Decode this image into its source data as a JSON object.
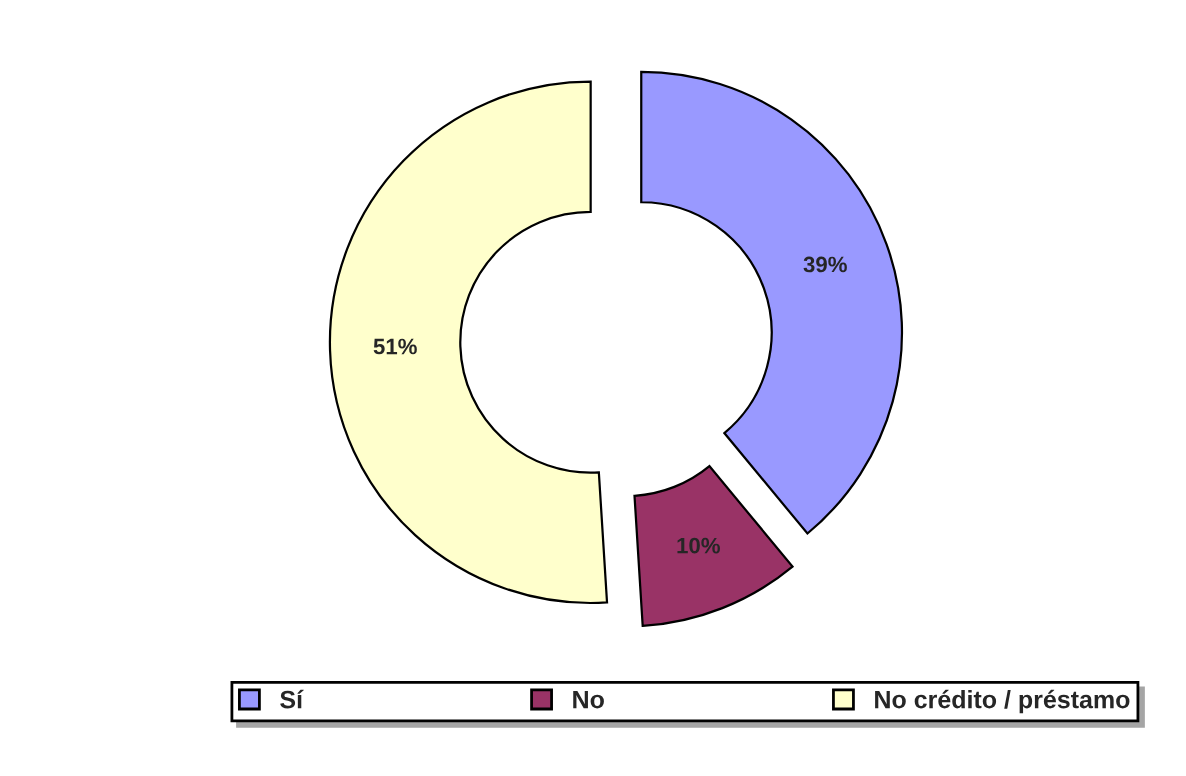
{
  "chart_data": {
    "type": "donut",
    "categories": [
      "Sí",
      "No",
      "No crédito / préstamo"
    ],
    "values": [
      39,
      10,
      51
    ],
    "colors": [
      "#9999ff",
      "#993366",
      "#ffffcc"
    ],
    "value_labels": [
      "39%",
      "10%",
      "51%"
    ],
    "legend": "bottom"
  }
}
